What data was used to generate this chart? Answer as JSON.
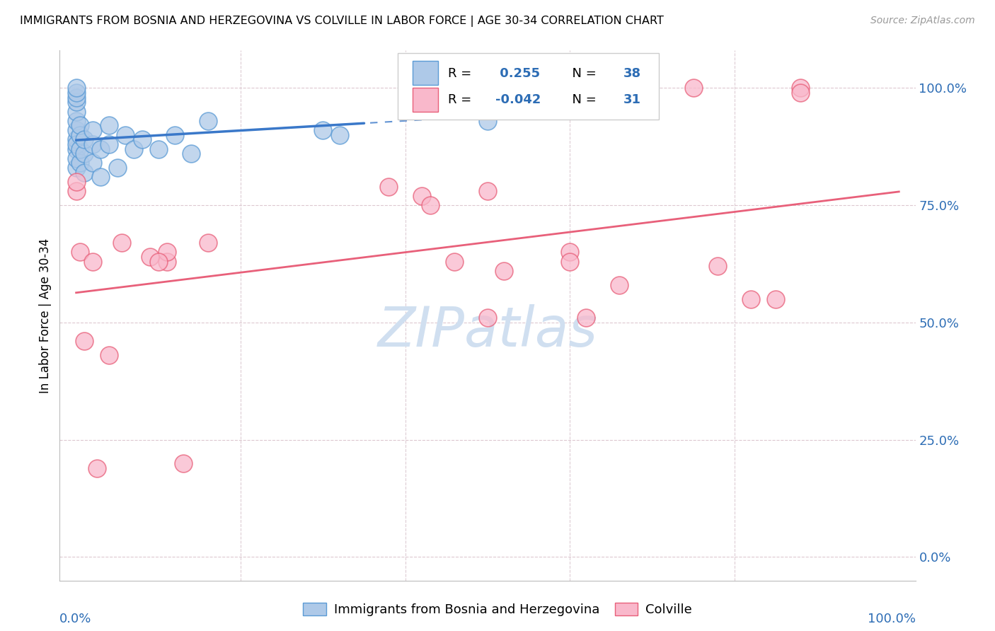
{
  "title": "IMMIGRANTS FROM BOSNIA AND HERZEGOVINA VS COLVILLE IN LABOR FORCE | AGE 30-34 CORRELATION CHART",
  "source": "Source: ZipAtlas.com",
  "ylabel": "In Labor Force | Age 30-34",
  "ytick_labels": [
    "0.0%",
    "25.0%",
    "50.0%",
    "75.0%",
    "100.0%"
  ],
  "ytick_values": [
    0.0,
    0.25,
    0.5,
    0.75,
    1.0
  ],
  "xtick_labels": [
    "0.0%",
    "",
    "",
    "",
    "",
    "100.0%"
  ],
  "xtick_values": [
    0.0,
    0.2,
    0.4,
    0.6,
    0.8,
    1.0
  ],
  "xlim": [
    -0.02,
    1.02
  ],
  "ylim": [
    -0.05,
    1.08
  ],
  "color_blue": "#aec9e8",
  "color_pink": "#f9b8cb",
  "color_edge_blue": "#5b9bd5",
  "color_edge_pink": "#e8607a",
  "color_line_blue": "#3a78c9",
  "color_line_pink": "#e8607a",
  "watermark_color": "#d0dff0",
  "blue_r": 0.255,
  "blue_n": 38,
  "pink_r": -0.042,
  "pink_n": 31,
  "blue_scatter_x": [
    0.0,
    0.0,
    0.0,
    0.0,
    0.0,
    0.0,
    0.0,
    0.0,
    0.0,
    0.0,
    0.0,
    0.0,
    0.005,
    0.005,
    0.005,
    0.005,
    0.01,
    0.01,
    0.01,
    0.02,
    0.02,
    0.02,
    0.03,
    0.03,
    0.04,
    0.04,
    0.05,
    0.06,
    0.07,
    0.08,
    0.1,
    0.12,
    0.14,
    0.16,
    0.3,
    0.32,
    0.5,
    0.53
  ],
  "blue_scatter_y": [
    0.87,
    0.89,
    0.91,
    0.93,
    0.95,
    0.97,
    0.98,
    0.99,
    1.0,
    0.83,
    0.85,
    0.88,
    0.84,
    0.87,
    0.9,
    0.92,
    0.82,
    0.86,
    0.89,
    0.84,
    0.88,
    0.91,
    0.81,
    0.87,
    0.88,
    0.92,
    0.83,
    0.9,
    0.87,
    0.89,
    0.87,
    0.9,
    0.86,
    0.93,
    0.91,
    0.9,
    0.93,
    1.0
  ],
  "pink_scatter_x": [
    0.0,
    0.0,
    0.005,
    0.01,
    0.02,
    0.025,
    0.04,
    0.055,
    0.09,
    0.11,
    0.11,
    0.13,
    0.38,
    0.42,
    0.43,
    0.5,
    0.52,
    0.6,
    0.62,
    0.66,
    0.75,
    0.78,
    0.82,
    0.88,
    0.88,
    0.1,
    0.16,
    0.46,
    0.5,
    0.6,
    0.85
  ],
  "pink_scatter_y": [
    0.78,
    0.8,
    0.65,
    0.46,
    0.63,
    0.19,
    0.43,
    0.67,
    0.64,
    0.63,
    0.65,
    0.2,
    0.79,
    0.77,
    0.75,
    0.78,
    0.61,
    0.65,
    0.51,
    0.58,
    1.0,
    0.62,
    0.55,
    1.0,
    0.99,
    0.63,
    0.67,
    0.63,
    0.51,
    0.63,
    0.55
  ]
}
